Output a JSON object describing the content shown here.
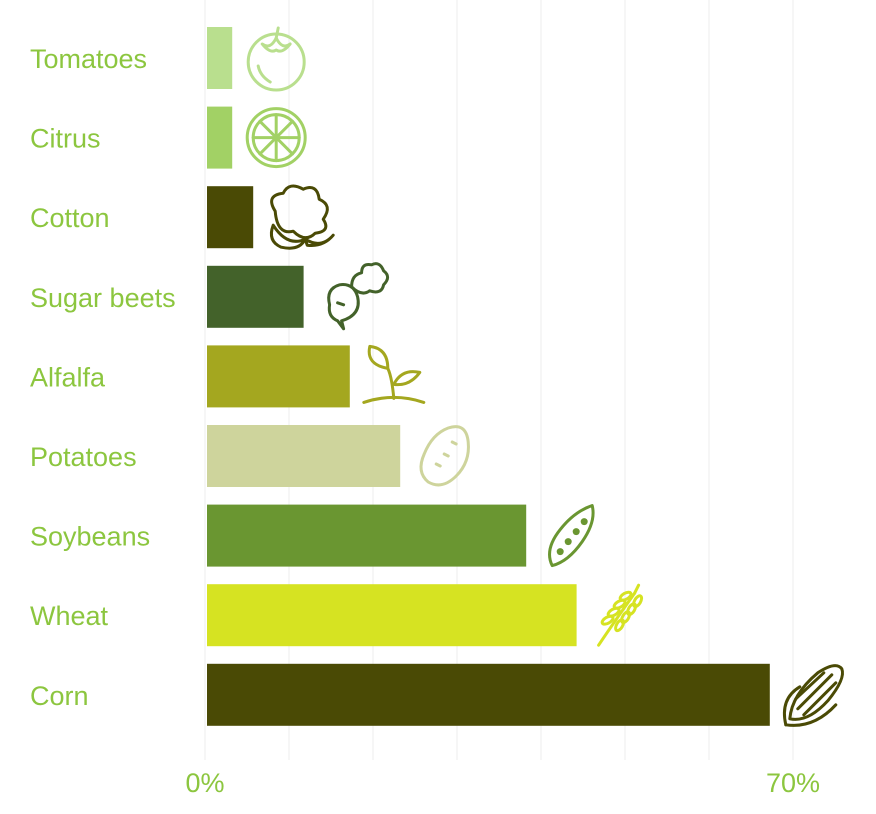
{
  "chart_data": {
    "type": "bar",
    "orientation": "horizontal",
    "categories": [
      "Tomatoes",
      "Citrus",
      "Cotton",
      "Sugar beets",
      "Alfalfa",
      "Potatoes",
      "Soybeans",
      "Wheat",
      "Corn"
    ],
    "values": [
      3,
      3,
      5.5,
      11.5,
      17,
      23,
      38,
      44,
      67
    ],
    "colors": [
      "#b9df8e",
      "#a2d165",
      "#4a4a05",
      "#43622a",
      "#a4a71f",
      "#ced49c",
      "#6a9631",
      "#d6e322",
      "#4a4a05"
    ],
    "icons": [
      "tomato-icon",
      "citrus-icon",
      "cotton-icon",
      "sugar-beet-icon",
      "alfalfa-sprout-icon",
      "potato-icon",
      "soybean-pod-icon",
      "wheat-icon",
      "corn-icon"
    ],
    "xlim": [
      0,
      80
    ],
    "x_ticks": [
      {
        "value": 0,
        "label": "0%"
      },
      {
        "value": 70,
        "label": "70%"
      }
    ],
    "grid": true,
    "label_color": "#8cc63f",
    "title": "",
    "xlabel": "",
    "ylabel": ""
  }
}
